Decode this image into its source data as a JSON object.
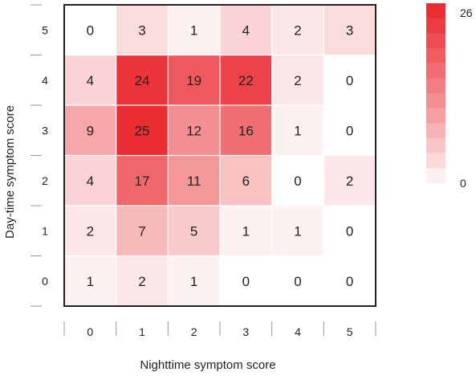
{
  "chart_data": {
    "type": "heatmap",
    "title": "",
    "xlabel": "Nighttime symptom score",
    "ylabel": "Day-time symptom score",
    "x_categories": [
      "0",
      "1",
      "2",
      "3",
      "4",
      "5"
    ],
    "y_categories": [
      "5",
      "4",
      "3",
      "2",
      "1",
      "0"
    ],
    "values": [
      [
        0,
        3,
        1,
        4,
        2,
        3
      ],
      [
        4,
        24,
        19,
        22,
        2,
        0
      ],
      [
        9,
        25,
        12,
        16,
        1,
        0
      ],
      [
        4,
        17,
        11,
        6,
        0,
        2
      ],
      [
        2,
        7,
        5,
        1,
        1,
        0
      ],
      [
        1,
        2,
        1,
        0,
        0,
        0
      ]
    ],
    "colorbar": {
      "min": 0,
      "max": 26,
      "min_label": "0",
      "max_label": "26",
      "placement": "right"
    },
    "colors": {
      "low": "#ffffff",
      "high": "#e8262c"
    }
  }
}
